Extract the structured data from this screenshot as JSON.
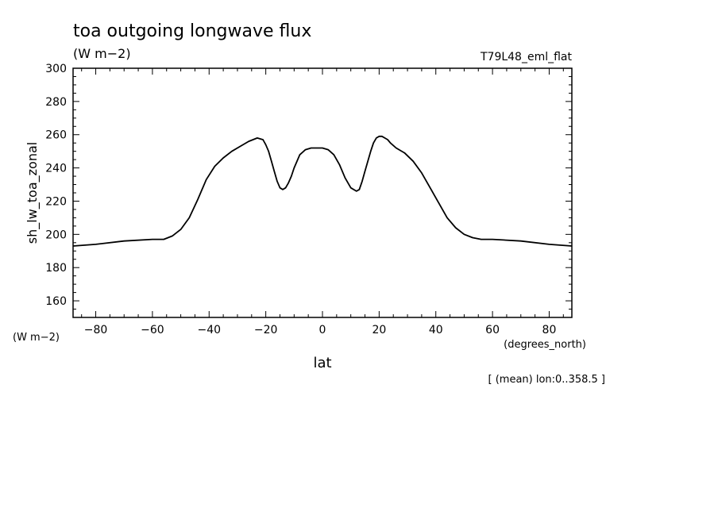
{
  "chart_data": {
    "type": "line",
    "title": "toa outgoing longwave flux",
    "subtitle": "(W m−2)",
    "run_label": "T79L48_eml_flat",
    "xlabel": "lat",
    "x_units": "(degrees_north)",
    "ylabel": "sh_lw_toa_zonal",
    "y_units": "(W m−2)",
    "footnote": "[ (mean) lon:0..358.5 ]",
    "xlim": [
      -88,
      88
    ],
    "ylim": [
      150,
      300
    ],
    "x_ticks": [
      -80,
      -60,
      -40,
      -20,
      0,
      20,
      40,
      60,
      80
    ],
    "x_tick_labels": [
      "−80",
      "−60",
      "−40",
      "−20",
      "0",
      "20",
      "40",
      "60",
      "80"
    ],
    "y_ticks": [
      160,
      180,
      200,
      220,
      240,
      260,
      280,
      300
    ],
    "y_tick_labels": [
      "160",
      "180",
      "200",
      "220",
      "240",
      "260",
      "280",
      "300"
    ],
    "grid": false,
    "series": [
      {
        "color": "#000000",
        "x": [
          -88,
          -80,
          -70,
          -60,
          -56,
          -53,
          -50,
          -47,
          -44,
          -41,
          -38,
          -35,
          -32,
          -29,
          -26,
          -23,
          -21,
          -20,
          -19,
          -18,
          -17,
          -16,
          -15,
          -14,
          -13,
          -12,
          -11,
          -10,
          -8,
          -6,
          -4,
          -2,
          0,
          2,
          4,
          6,
          8,
          10,
          12,
          13,
          14,
          15,
          16,
          17,
          18,
          19,
          20,
          21,
          22,
          23,
          24,
          26,
          29,
          32,
          35,
          38,
          41,
          44,
          47,
          50,
          53,
          56,
          60,
          70,
          80,
          88
        ],
        "y": [
          193,
          194,
          196,
          197,
          197,
          199,
          203,
          210,
          221,
          233,
          241,
          246,
          250,
          253,
          256,
          258,
          257,
          254,
          250,
          244,
          238,
          232,
          228,
          227,
          228,
          231,
          235,
          240,
          248,
          251,
          252,
          252,
          252,
          251,
          248,
          242,
          234,
          228,
          226,
          227,
          232,
          238,
          244,
          250,
          255,
          258,
          259,
          259,
          258,
          257,
          255,
          252,
          249,
          244,
          237,
          228,
          219,
          210,
          204,
          200,
          198,
          197,
          197,
          196,
          194,
          193
        ]
      }
    ]
  }
}
